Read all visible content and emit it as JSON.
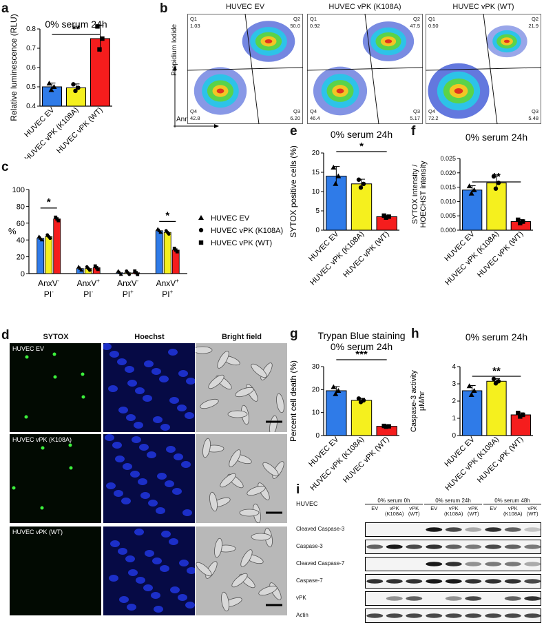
{
  "panel_letters": {
    "a": "a",
    "b": "b",
    "c": "c",
    "d": "d",
    "e": "e",
    "f": "f",
    "g": "g",
    "h": "h",
    "i": "i"
  },
  "colors": {
    "ev": "#2f7be8",
    "k108a": "#f5f01e",
    "wt": "#f51d1d"
  },
  "bar_panels": {
    "a": {
      "title": "0% serum 24h",
      "ylabel": "Relative luminescence (RLU)",
      "sig": "**",
      "ticks": [
        "0.4",
        "0.5",
        "0.6",
        "0.7",
        "0.8"
      ]
    },
    "e": {
      "title": "0% serum 24h",
      "ylabel": "SYTOX positive cells (%)",
      "sig": "*",
      "ticks": [
        "0",
        "5",
        "10",
        "15",
        "20"
      ]
    },
    "f": {
      "title": "0% serum 24h",
      "ylabel": "SYTOX intensity / HOECHST intensity",
      "sig": "**",
      "ticks": [
        "0.000",
        "0.005",
        "0.010",
        "0.015",
        "0.020",
        "0.025"
      ]
    },
    "g": {
      "title_line1": "Trypan Blue staining",
      "title_line2": "0% serum 24h",
      "ylabel": "Percent cell death (%)",
      "sig": "***",
      "ticks": [
        "0",
        "10",
        "20",
        "30"
      ]
    },
    "h": {
      "title": "0% serum 24h",
      "ylabel": "Caspase-3 activity μM/hr",
      "sig": "**",
      "ticks": [
        "0",
        "1",
        "2",
        "3",
        "4"
      ]
    }
  },
  "groups": [
    "HUVEC EV",
    "HUVEC vPK (K108A)",
    "HUVEC vPK (WT)"
  ],
  "chart_data": [
    {
      "panel": "a",
      "type": "bar",
      "categories": [
        "HUVEC EV",
        "HUVEC vPK (K108A)",
        "HUVEC vPK (WT)"
      ],
      "values": [
        0.5,
        0.495,
        0.75
      ],
      "errors": [
        0.02,
        0.02,
        0.07
      ],
      "ylim": [
        0.4,
        0.8
      ],
      "ylabel": "Relative luminescence (RLU)",
      "title": "0% serum 24h"
    },
    {
      "panel": "e",
      "type": "bar",
      "categories": [
        "HUVEC EV",
        "HUVEC vPK (K108A)",
        "HUVEC vPK (WT)"
      ],
      "values": [
        14,
        12,
        3.5
      ],
      "errors": [
        2.5,
        1.2,
        0.3
      ],
      "ylim": [
        0,
        20
      ],
      "ylabel": "SYTOX positive cells (%)",
      "title": "0% serum 24h"
    },
    {
      "panel": "f",
      "type": "bar",
      "categories": [
        "HUVEC EV",
        "HUVEC vPK (K108A)",
        "HUVEC vPK (WT)"
      ],
      "values": [
        0.014,
        0.0165,
        0.003
      ],
      "errors": [
        0.0015,
        0.0025,
        0.0007
      ],
      "ylim": [
        0,
        0.025
      ],
      "ylabel": "SYTOX intensity / HOECHST intensity",
      "title": "0% serum 24h"
    },
    {
      "panel": "g",
      "type": "bar",
      "categories": [
        "HUVEC EV",
        "HUVEC vPK (K108A)",
        "HUVEC vPK (WT)"
      ],
      "values": [
        19.5,
        15.3,
        4
      ],
      "errors": [
        1.8,
        0.9,
        0.2
      ],
      "ylim": [
        0,
        30
      ],
      "ylabel": "Percent cell death (%)",
      "title": "Trypan Blue staining 0% serum 24h"
    },
    {
      "panel": "h",
      "type": "bar",
      "categories": [
        "HUVEC EV",
        "HUVEC vPK (K108A)",
        "HUVEC vPK (WT)"
      ],
      "values": [
        2.6,
        3.15,
        1.2
      ],
      "errors": [
        0.3,
        0.15,
        0.12
      ],
      "ylim": [
        0,
        4
      ],
      "ylabel": "Caspase-3 activity μM/hr",
      "title": "0% serum 24h"
    },
    {
      "panel": "c",
      "type": "bar",
      "categories": [
        "AnxV- PI-",
        "AnxV+ PI-",
        "AnxV- PI+",
        "AnxV+ PI+"
      ],
      "ylim": [
        0,
        100
      ],
      "ylabel": "%",
      "series": [
        {
          "name": "HUVEC EV",
          "values": [
            42,
            6,
            1,
            51
          ]
        },
        {
          "name": "HUVEC vPK (K108A)",
          "values": [
            44,
            6,
            1,
            49
          ]
        },
        {
          "name": "HUVEC vPK (WT)",
          "values": [
            65,
            7,
            1,
            28
          ]
        }
      ]
    }
  ],
  "panel_c": {
    "ylabel": "%",
    "ticks": [
      "0",
      "20",
      "40",
      "60",
      "80",
      "100"
    ],
    "cats": [
      {
        "top": "AnxV",
        "sup1": "-",
        "bot": "PI",
        "sup2": "-"
      },
      {
        "top": "AnxV",
        "sup1": "+",
        "bot": "PI",
        "sup2": "-"
      },
      {
        "top": "AnxV",
        "sup1": "-",
        "bot": "PI",
        "sup2": "+"
      },
      {
        "top": "AnxV",
        "sup1": "+",
        "bot": "PI",
        "sup2": "+"
      }
    ],
    "sig1": "*",
    "sig2": "*",
    "legend": [
      "HUVEC EV",
      "HUVEC vPK (K108A)",
      "HUVEC vPK (WT)"
    ]
  },
  "panel_b": {
    "xlabel": "Annexin V-FITC",
    "ylabel": "Propidium Iodide",
    "plots": [
      {
        "title": "HUVEC EV",
        "q1": "Q1",
        "q1v": "1.03",
        "q2": "Q2",
        "q2v": "50.0",
        "q3": "Q3",
        "q3v": "6.20",
        "q4": "Q4",
        "q4v": "42.8"
      },
      {
        "title": "HUVEC vPK (K108A)",
        "q1": "Q1",
        "q1v": "0.92",
        "q2": "Q2",
        "q2v": "47.5",
        "q3": "Q3",
        "q3v": "5.17",
        "q4": "Q4",
        "q4v": "46.4"
      },
      {
        "title": "HUVEC vPK (WT)",
        "q1": "Q1",
        "q1v": "0.50",
        "q2": "Q2",
        "q2v": "21.9",
        "q3": "Q3",
        "q3v": "5.48",
        "q4": "Q4",
        "q4v": "72.2"
      }
    ]
  },
  "panel_d": {
    "cols": [
      "SYTOX",
      "Hoechst",
      "Bright field"
    ],
    "rows": [
      "HUVEC EV",
      "HUVEC vPK (K108A)",
      "HUVEC vPK (WT)"
    ]
  },
  "panel_i": {
    "huvec": "HUVEC",
    "conds": [
      "0% serum 0h",
      "0% serum 24h",
      "0% serum 48h"
    ],
    "lanes": [
      "EV",
      "vPK (K108A)",
      "vPK (WT)"
    ],
    "blots": [
      "Cleaved Caspase-3",
      "Caspase-3",
      "Cleaved Caspase-7",
      "Caspase-7",
      "vPK",
      "Actin"
    ]
  }
}
